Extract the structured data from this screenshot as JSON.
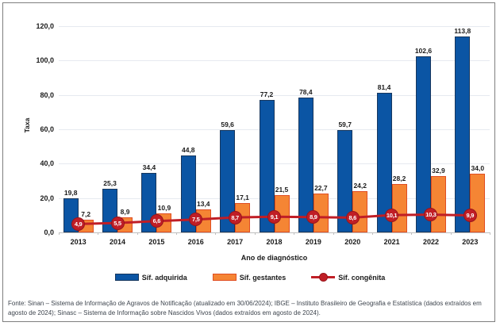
{
  "chart_data": {
    "type": "bar",
    "title": "",
    "xlabel": "Ano de diagnóstico",
    "ylabel": "Taxa",
    "ylim": [
      0,
      120
    ],
    "ytick_step": 20,
    "ytick_labels": [
      "0,0",
      "20,0",
      "40,0",
      "60,0",
      "80,0",
      "100,0",
      "120,0"
    ],
    "grid": true,
    "legend_position": "bottom",
    "categories": [
      "2013",
      "2014",
      "2015",
      "2016",
      "2017",
      "2018",
      "2019",
      "2020",
      "2021",
      "2022",
      "2023"
    ],
    "series": [
      {
        "name": "Síf. adquirida",
        "type": "bar",
        "color": "#0B55A4",
        "border_color": "#17375E",
        "values": [
          19.8,
          25.3,
          34.4,
          44.8,
          59.6,
          77.2,
          78.4,
          59.7,
          81.4,
          102.6,
          113.8
        ],
        "labels": [
          "19,8",
          "25,3",
          "34,4",
          "44,8",
          "59,6",
          "77,2",
          "78,4",
          "59,7",
          "81,4",
          "102,6",
          "113,8"
        ]
      },
      {
        "name": "Síf. gestantes",
        "type": "bar",
        "color": "#F58534",
        "border_color": "#E04E23",
        "values": [
          7.2,
          8.9,
          10.9,
          13.4,
          17.1,
          21.5,
          22.7,
          24.2,
          28.2,
          32.9,
          34.0
        ],
        "labels": [
          "7,2",
          "8,9",
          "10,9",
          "13,4",
          "17,1",
          "21,5",
          "22,7",
          "24,2",
          "28,2",
          "32,9",
          "34,0"
        ]
      },
      {
        "name": "Síf. congênita",
        "type": "line",
        "color": "#C01E26",
        "border_color": "#99141B",
        "values": [
          4.9,
          5.5,
          6.6,
          7.5,
          8.7,
          9.1,
          8.9,
          8.6,
          10.1,
          10.3,
          9.9
        ],
        "labels": [
          "4,9",
          "5,5",
          "6,6",
          "7,5",
          "8,7",
          "9,1",
          "8,9",
          "8,6",
          "10,1",
          "10,3",
          "9,9"
        ]
      }
    ],
    "colors": {
      "gridline": "#E6EAF0",
      "axis_line": "#BFBFBF",
      "text": "#1A1A1A"
    }
  },
  "footer": {
    "source_text": "Fonte: Sinan – Sistema de Informação de Agravos de Notificação (atualizado em 30/06/2024); IBGE – Instituto Brasileiro de Geografia e Estatística (dados extraídos em agosto de 2024); Sinasc – Sistema de Informação sobre Nascidos Vivos (dados extraídos em agosto de 2024)."
  }
}
